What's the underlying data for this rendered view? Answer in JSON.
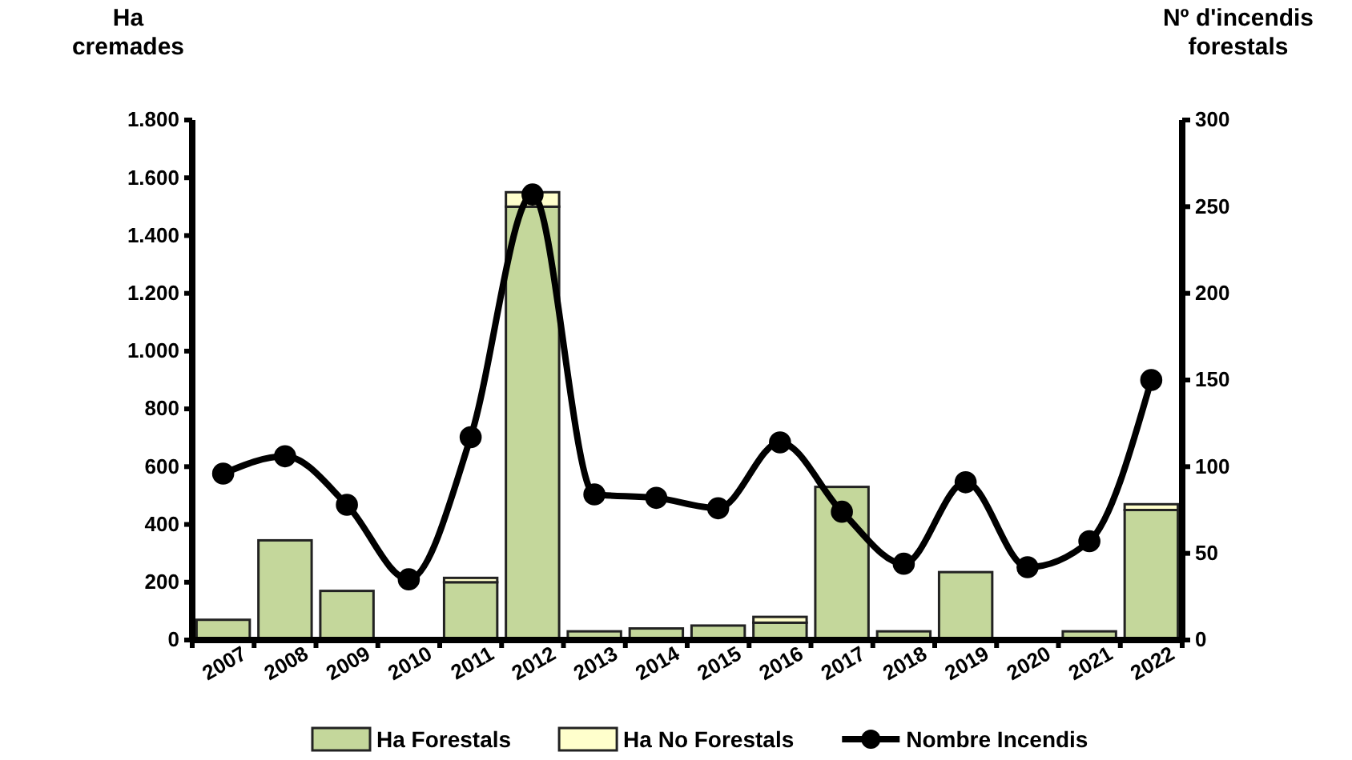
{
  "chart_data": {
    "type": "bar",
    "stacked": true,
    "ylabel": "Ha cremades",
    "y2label": "Nº d'incendis forestals",
    "categories": [
      "2007",
      "2008",
      "2009",
      "2010",
      "2011",
      "2012",
      "2013",
      "2014",
      "2015",
      "2016",
      "2017",
      "2018",
      "2019",
      "2020",
      "2021",
      "2022"
    ],
    "series": [
      {
        "name": "Ha Forestals",
        "color": "#c4d79b",
        "values": [
          70,
          345,
          170,
          null,
          200,
          1500,
          30,
          40,
          50,
          60,
          530,
          30,
          235,
          null,
          30,
          450
        ]
      },
      {
        "name": "Ha No Forestals",
        "color": "#ffffcc",
        "values": [
          0,
          0,
          0,
          0,
          15,
          50,
          0,
          0,
          0,
          20,
          0,
          0,
          0,
          0,
          0,
          20
        ]
      },
      {
        "name": "Nombre Incendis",
        "type": "line",
        "axis": "y2",
        "color": "#000000",
        "marker": "circle",
        "values": [
          96,
          106,
          78,
          35,
          117,
          257,
          84,
          82,
          76,
          114,
          74,
          44,
          91,
          42,
          57,
          150
        ]
      }
    ],
    "ylim": [
      0,
      1800
    ],
    "yticks": [
      0,
      {
        "value": 200,
        "label": "200"
      },
      {
        "value": 400,
        "label": "400"
      },
      {
        "value": 600,
        "label": "600"
      },
      {
        "value": 800,
        "label": "800"
      },
      {
        "value": 1000,
        "label": "1.000"
      },
      {
        "value": 1200,
        "label": "1.200"
      },
      {
        "value": 1400,
        "label": "1.400"
      },
      {
        "value": 1600,
        "label": "1.600"
      },
      {
        "value": 1800,
        "label": "1.800"
      }
    ],
    "y2lim": [
      0,
      300
    ],
    "y2ticks": [
      0,
      50,
      100,
      150,
      200,
      250,
      300
    ],
    "grid": false,
    "legend": "bottom"
  }
}
